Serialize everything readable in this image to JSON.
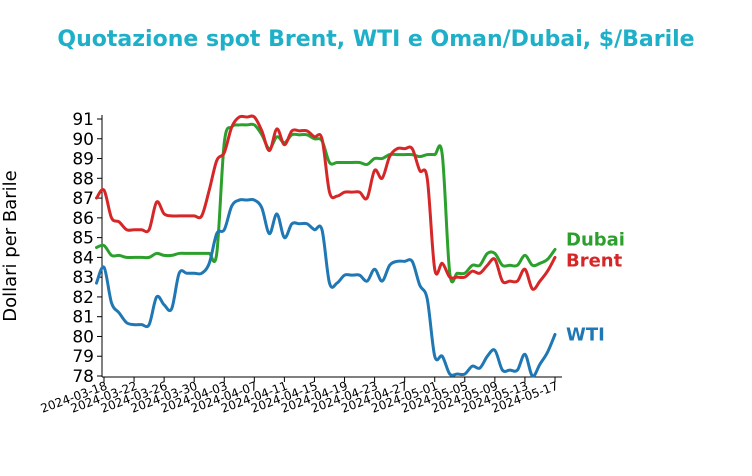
{
  "chart_data": {
    "type": "line",
    "title": "Quotazione spot Brent, WTI e Oman/Dubai, $/Barile",
    "title_color": "#1eb0c8",
    "ylabel": "Dollari per Barile",
    "xlabel": "",
    "ylim": [
      78,
      91
    ],
    "yticks": [
      "78",
      "79",
      "80",
      "81",
      "82",
      "83",
      "84",
      "85",
      "86",
      "87",
      "88",
      "89",
      "90",
      "91"
    ],
    "xlim": [
      "2024-03-18",
      "2024-05-17"
    ],
    "xticks": [
      "2024-03-18",
      "2024-03-22",
      "2024-03-26",
      "2024-03-30",
      "2024-04-03",
      "2024-04-07",
      "2024-04-11",
      "2024-04-15",
      "2024-04-19",
      "2024-04-23",
      "2024-04-27",
      "2024-05-01",
      "2024-05-05",
      "2024-05-09",
      "2024-05-13",
      "2024-05-17"
    ],
    "grid": false,
    "legend": "end-of-line labels",
    "series": [
      {
        "name": "Dubai",
        "color": "#2ca02c",
        "points": [
          [
            "2024-03-17",
            84.5
          ],
          [
            "2024-03-18",
            84.6
          ],
          [
            "2024-03-19",
            84.1
          ],
          [
            "2024-03-20",
            84.1
          ],
          [
            "2024-03-21",
            84.0
          ],
          [
            "2024-03-22",
            84.0
          ],
          [
            "2024-03-23",
            84.0
          ],
          [
            "2024-03-24",
            84.0
          ],
          [
            "2024-03-25",
            84.2
          ],
          [
            "2024-03-26",
            84.1
          ],
          [
            "2024-03-27",
            84.1
          ],
          [
            "2024-03-28",
            84.2
          ],
          [
            "2024-03-29",
            84.2
          ],
          [
            "2024-03-30",
            84.2
          ],
          [
            "2024-03-31",
            84.2
          ],
          [
            "2024-04-01",
            84.2
          ],
          [
            "2024-04-02",
            84.2
          ],
          [
            "2024-04-03",
            89.8
          ],
          [
            "2024-04-04",
            90.6
          ],
          [
            "2024-04-05",
            90.7
          ],
          [
            "2024-04-06",
            90.7
          ],
          [
            "2024-04-07",
            90.7
          ],
          [
            "2024-04-08",
            90.2
          ],
          [
            "2024-04-09",
            89.5
          ],
          [
            "2024-04-10",
            90.1
          ],
          [
            "2024-04-11",
            89.8
          ],
          [
            "2024-04-12",
            90.2
          ],
          [
            "2024-04-13",
            90.2
          ],
          [
            "2024-04-14",
            90.2
          ],
          [
            "2024-04-15",
            90.0
          ],
          [
            "2024-04-16",
            89.9
          ],
          [
            "2024-04-17",
            88.8
          ],
          [
            "2024-04-18",
            88.8
          ],
          [
            "2024-04-19",
            88.8
          ],
          [
            "2024-04-20",
            88.8
          ],
          [
            "2024-04-21",
            88.8
          ],
          [
            "2024-04-22",
            88.7
          ],
          [
            "2024-04-23",
            89.0
          ],
          [
            "2024-04-24",
            89.0
          ],
          [
            "2024-04-25",
            89.2
          ],
          [
            "2024-04-26",
            89.2
          ],
          [
            "2024-04-27",
            89.2
          ],
          [
            "2024-04-28",
            89.2
          ],
          [
            "2024-04-29",
            89.1
          ],
          [
            "2024-04-30",
            89.2
          ],
          [
            "2024-05-01",
            89.2
          ],
          [
            "2024-05-02",
            89.2
          ],
          [
            "2024-05-03",
            83.2
          ],
          [
            "2024-05-04",
            83.2
          ],
          [
            "2024-05-05",
            83.2
          ],
          [
            "2024-05-06",
            83.6
          ],
          [
            "2024-05-07",
            83.6
          ],
          [
            "2024-05-08",
            84.2
          ],
          [
            "2024-05-09",
            84.2
          ],
          [
            "2024-05-10",
            83.6
          ],
          [
            "2024-05-11",
            83.6
          ],
          [
            "2024-05-12",
            83.6
          ],
          [
            "2024-05-13",
            84.1
          ],
          [
            "2024-05-14",
            83.6
          ],
          [
            "2024-05-15",
            83.7
          ],
          [
            "2024-05-16",
            83.9
          ],
          [
            "2024-05-17",
            84.4
          ]
        ]
      },
      {
        "name": "Brent",
        "color": "#d62728",
        "points": [
          [
            "2024-03-17",
            87.0
          ],
          [
            "2024-03-18",
            87.4
          ],
          [
            "2024-03-19",
            86.0
          ],
          [
            "2024-03-20",
            85.8
          ],
          [
            "2024-03-21",
            85.4
          ],
          [
            "2024-03-22",
            85.4
          ],
          [
            "2024-03-23",
            85.4
          ],
          [
            "2024-03-24",
            85.4
          ],
          [
            "2024-03-25",
            86.8
          ],
          [
            "2024-03-26",
            86.2
          ],
          [
            "2024-03-27",
            86.1
          ],
          [
            "2024-03-28",
            86.1
          ],
          [
            "2024-03-29",
            86.1
          ],
          [
            "2024-03-30",
            86.1
          ],
          [
            "2024-03-31",
            86.1
          ],
          [
            "2024-04-01",
            87.4
          ],
          [
            "2024-04-02",
            88.9
          ],
          [
            "2024-04-03",
            89.3
          ],
          [
            "2024-04-04",
            90.6
          ],
          [
            "2024-04-05",
            91.1
          ],
          [
            "2024-04-06",
            91.1
          ],
          [
            "2024-04-07",
            91.1
          ],
          [
            "2024-04-08",
            90.4
          ],
          [
            "2024-04-09",
            89.4
          ],
          [
            "2024-04-10",
            90.5
          ],
          [
            "2024-04-11",
            89.7
          ],
          [
            "2024-04-12",
            90.4
          ],
          [
            "2024-04-13",
            90.4
          ],
          [
            "2024-04-14",
            90.4
          ],
          [
            "2024-04-15",
            90.1
          ],
          [
            "2024-04-16",
            90.0
          ],
          [
            "2024-04-17",
            87.3
          ],
          [
            "2024-04-18",
            87.1
          ],
          [
            "2024-04-19",
            87.3
          ],
          [
            "2024-04-20",
            87.3
          ],
          [
            "2024-04-21",
            87.3
          ],
          [
            "2024-04-22",
            87.0
          ],
          [
            "2024-04-23",
            88.4
          ],
          [
            "2024-04-24",
            88.0
          ],
          [
            "2024-04-25",
            89.1
          ],
          [
            "2024-04-26",
            89.5
          ],
          [
            "2024-04-27",
            89.5
          ],
          [
            "2024-04-28",
            89.5
          ],
          [
            "2024-04-29",
            88.4
          ],
          [
            "2024-04-30",
            88.0
          ],
          [
            "2024-05-01",
            83.4
          ],
          [
            "2024-05-02",
            83.7
          ],
          [
            "2024-05-03",
            83.0
          ],
          [
            "2024-05-04",
            83.0
          ],
          [
            "2024-05-05",
            83.0
          ],
          [
            "2024-05-06",
            83.3
          ],
          [
            "2024-05-07",
            83.2
          ],
          [
            "2024-05-08",
            83.6
          ],
          [
            "2024-05-09",
            83.9
          ],
          [
            "2024-05-10",
            82.8
          ],
          [
            "2024-05-11",
            82.8
          ],
          [
            "2024-05-12",
            82.8
          ],
          [
            "2024-05-13",
            83.4
          ],
          [
            "2024-05-14",
            82.4
          ],
          [
            "2024-05-15",
            82.8
          ],
          [
            "2024-05-16",
            83.3
          ],
          [
            "2024-05-17",
            84.0
          ]
        ]
      },
      {
        "name": "WTI",
        "color": "#1f77b4",
        "points": [
          [
            "2024-03-17",
            82.7
          ],
          [
            "2024-03-18",
            83.5
          ],
          [
            "2024-03-19",
            81.7
          ],
          [
            "2024-03-20",
            81.2
          ],
          [
            "2024-03-21",
            80.7
          ],
          [
            "2024-03-22",
            80.6
          ],
          [
            "2024-03-23",
            80.6
          ],
          [
            "2024-03-24",
            80.6
          ],
          [
            "2024-03-25",
            82.0
          ],
          [
            "2024-03-26",
            81.6
          ],
          [
            "2024-03-27",
            81.4
          ],
          [
            "2024-03-28",
            83.2
          ],
          [
            "2024-03-29",
            83.2
          ],
          [
            "2024-03-30",
            83.2
          ],
          [
            "2024-03-31",
            83.2
          ],
          [
            "2024-04-01",
            83.7
          ],
          [
            "2024-04-02",
            85.2
          ],
          [
            "2024-04-03",
            85.4
          ],
          [
            "2024-04-04",
            86.6
          ],
          [
            "2024-04-05",
            86.9
          ],
          [
            "2024-04-06",
            86.9
          ],
          [
            "2024-04-07",
            86.9
          ],
          [
            "2024-04-08",
            86.5
          ],
          [
            "2024-04-09",
            85.2
          ],
          [
            "2024-04-10",
            86.2
          ],
          [
            "2024-04-11",
            85.0
          ],
          [
            "2024-04-12",
            85.7
          ],
          [
            "2024-04-13",
            85.7
          ],
          [
            "2024-04-14",
            85.7
          ],
          [
            "2024-04-15",
            85.4
          ],
          [
            "2024-04-16",
            85.4
          ],
          [
            "2024-04-17",
            82.7
          ],
          [
            "2024-04-18",
            82.7
          ],
          [
            "2024-04-19",
            83.1
          ],
          [
            "2024-04-20",
            83.1
          ],
          [
            "2024-04-21",
            83.1
          ],
          [
            "2024-04-22",
            82.8
          ],
          [
            "2024-04-23",
            83.4
          ],
          [
            "2024-04-24",
            82.8
          ],
          [
            "2024-04-25",
            83.6
          ],
          [
            "2024-04-26",
            83.8
          ],
          [
            "2024-04-27",
            83.8
          ],
          [
            "2024-04-28",
            83.8
          ],
          [
            "2024-04-29",
            82.6
          ],
          [
            "2024-04-30",
            81.9
          ],
          [
            "2024-05-01",
            79.0
          ],
          [
            "2024-05-02",
            79.0
          ],
          [
            "2024-05-03",
            78.1
          ],
          [
            "2024-05-04",
            78.1
          ],
          [
            "2024-05-05",
            78.1
          ],
          [
            "2024-05-06",
            78.5
          ],
          [
            "2024-05-07",
            78.4
          ],
          [
            "2024-05-08",
            79.0
          ],
          [
            "2024-05-09",
            79.3
          ],
          [
            "2024-05-10",
            78.3
          ],
          [
            "2024-05-11",
            78.3
          ],
          [
            "2024-05-12",
            78.3
          ],
          [
            "2024-05-13",
            79.1
          ],
          [
            "2024-05-14",
            78.0
          ],
          [
            "2024-05-15",
            78.6
          ],
          [
            "2024-05-16",
            79.2
          ],
          [
            "2024-05-17",
            80.1
          ]
        ]
      }
    ]
  }
}
